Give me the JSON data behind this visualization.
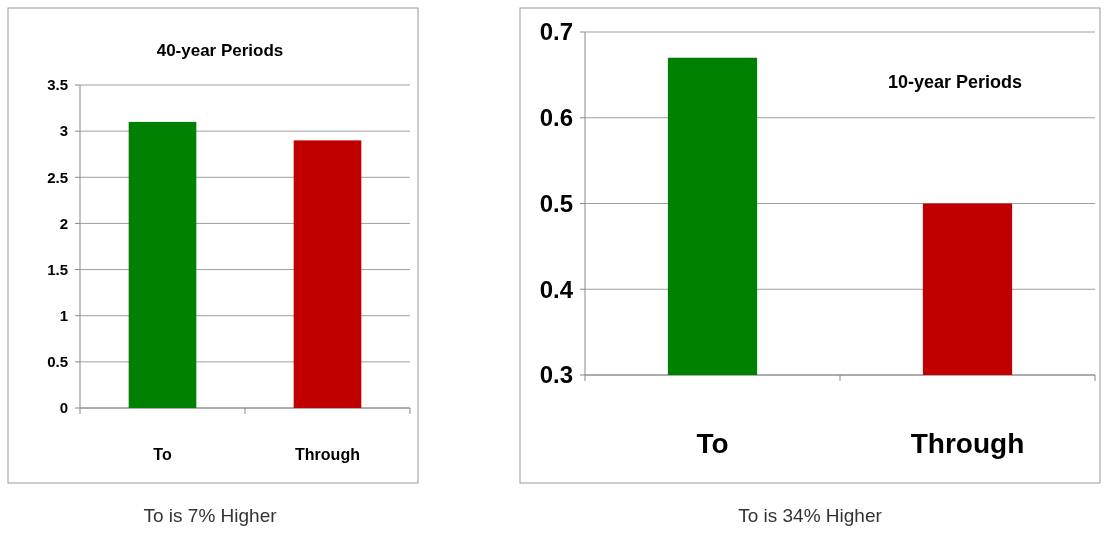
{
  "chart_data": [
    {
      "type": "bar",
      "title": "40-year Periods",
      "categories": [
        "To",
        "Through"
      ],
      "values": [
        3.1,
        2.9
      ],
      "colors": [
        "#008000",
        "#c00000"
      ],
      "ylim": [
        0,
        3.5
      ],
      "yticks": [
        0,
        0.5,
        1,
        1.5,
        2,
        2.5,
        3,
        3.5
      ],
      "grid": "y",
      "annotations": [
        "To is 7% Higher"
      ]
    },
    {
      "type": "bar",
      "title": "10-year Periods",
      "categories": [
        "To",
        "Through"
      ],
      "values": [
        0.67,
        0.5
      ],
      "colors": [
        "#008000",
        "#c00000"
      ],
      "ylim": [
        0.3,
        0.7
      ],
      "yticks": [
        0.3,
        0.4,
        0.5,
        0.6,
        0.7
      ],
      "grid": "y",
      "annotations": [
        "To is 34% Higher"
      ]
    }
  ]
}
